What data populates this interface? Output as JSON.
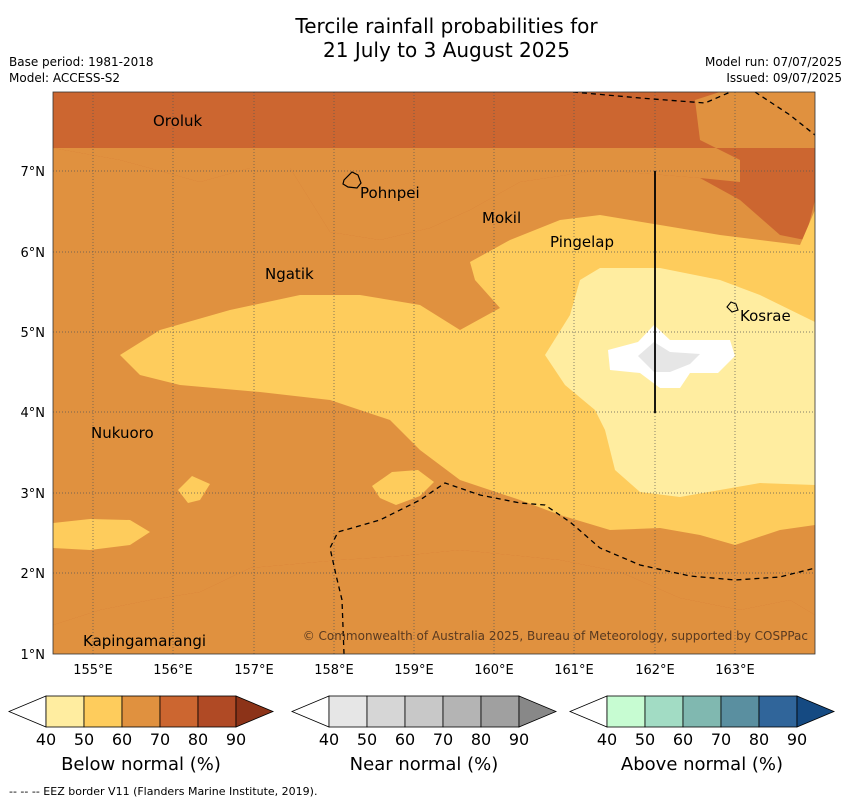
{
  "header": {
    "title_line1": "Tercile rainfall probabilities for",
    "title_line2": "21 July to 3 August 2025",
    "base_period": "Base period: 1981-2018",
    "model": "Model: ACCESS-S2",
    "model_run": "Model run: 07/07/2025",
    "issued": "Issued: 09/07/2025"
  },
  "map": {
    "x_ticks": [
      "155°E",
      "156°E",
      "157°E",
      "158°E",
      "159°E",
      "160°E",
      "161°E",
      "162°E",
      "163°E"
    ],
    "y_ticks": [
      "1°N",
      "2°N",
      "3°N",
      "4°N",
      "5°N",
      "6°N",
      "7°N"
    ],
    "places": [
      "Oroluk",
      "Pohnpei",
      "Mokil",
      "Pingelap",
      "Ngatik",
      "Kosrae",
      "Nukuoro",
      "Kapingamarangi"
    ],
    "copyright": "© Commonwealth of Australia 2025, Bureau of Meteorology, supported by COSPPac"
  },
  "colorbars": [
    {
      "label": "Below normal (%)",
      "ticks": [
        "40",
        "50",
        "60",
        "70",
        "80",
        "90"
      ],
      "colors": [
        "#ffeda0",
        "#fecc5c",
        "#e0913f",
        "#cc6630",
        "#b04a25",
        "#8c3318"
      ]
    },
    {
      "label": "Near normal (%)",
      "ticks": [
        "40",
        "50",
        "60",
        "70",
        "80",
        "90"
      ],
      "colors": [
        "#e6e6e6",
        "#d6d6d6",
        "#c8c8c8",
        "#b4b4b4",
        "#a0a0a0",
        "#888888"
      ]
    },
    {
      "label": "Above normal (%)",
      "ticks": [
        "40",
        "50",
        "60",
        "70",
        "80",
        "90"
      ],
      "colors": [
        "#c7fcd2",
        "#a2dcc4",
        "#80b8b0",
        "#5a8fa0",
        "#30659a",
        "#154a82"
      ]
    }
  ],
  "footer": "--  --  -- EEZ border V11 (Flanders Marine Institute, 2019)."
}
